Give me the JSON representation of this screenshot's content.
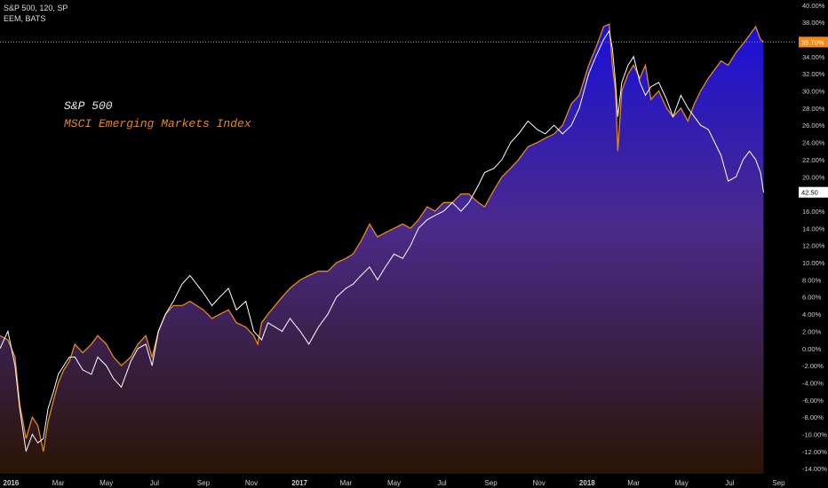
{
  "header": {
    "series1": "S&P 500, 120, SP",
    "series2": "EEM, BATS"
  },
  "legend": {
    "spx": "S&P 500",
    "eem": "MSCI Emerging Markets Index"
  },
  "colors": {
    "background": "#000000",
    "spx_line": "#ffffff",
    "eem_line": "#e08a1e",
    "fill_top": "#1a10d8",
    "fill_bottom": "#2a1404",
    "badge_orange": "#f08a1c",
    "badge_white": "#ffffff"
  },
  "badges": {
    "eem_last": "35.70%",
    "spx_last": "42.50"
  },
  "chart_data": {
    "type": "line",
    "yunit": "percent",
    "ylim": [
      -14.6,
      40.6
    ],
    "xlim": [
      "2015-12-18",
      "2018-09-22"
    ],
    "y_ticks": [
      "40.00%",
      "38.00%",
      "36.00%",
      "34.00%",
      "32.00%",
      "30.00%",
      "28.00%",
      "26.00%",
      "24.00%",
      "22.00%",
      "20.00%",
      "18.00%",
      "16.00%",
      "14.00%",
      "12.00%",
      "10.00%",
      "8.00%",
      "6.00%",
      "4.00%",
      "2.00%",
      "0.00%",
      "-2.00%",
      "-4.00%",
      "-6.00%",
      "-8.00%",
      "-10.00%",
      "-12.00%",
      "-14.00%"
    ],
    "y_tick_values": [
      40,
      38,
      36,
      34,
      32,
      30,
      28,
      26,
      24,
      22,
      20,
      18,
      16,
      14,
      12,
      10,
      8,
      6,
      4,
      2,
      0,
      -2,
      -4,
      -6,
      -8,
      -10,
      -12,
      -14
    ],
    "x_ticks": [
      {
        "label": "2016",
        "date": "2016-01-01",
        "bold": true
      },
      {
        "label": "Mar",
        "date": "2016-03-01"
      },
      {
        "label": "May",
        "date": "2016-05-01"
      },
      {
        "label": "Jul",
        "date": "2016-07-01"
      },
      {
        "label": "Sep",
        "date": "2016-09-01"
      },
      {
        "label": "Nov",
        "date": "2016-11-01"
      },
      {
        "label": "2017",
        "date": "2017-01-01",
        "bold": true
      },
      {
        "label": "Mar",
        "date": "2017-03-01"
      },
      {
        "label": "May",
        "date": "2017-05-01"
      },
      {
        "label": "Jul",
        "date": "2017-07-01"
      },
      {
        "label": "Sep",
        "date": "2017-09-01"
      },
      {
        "label": "Nov",
        "date": "2017-11-01"
      },
      {
        "label": "2018",
        "date": "2018-01-01",
        "bold": true
      },
      {
        "label": "Mar",
        "date": "2018-03-01"
      },
      {
        "label": "May",
        "date": "2018-05-01"
      },
      {
        "label": "Jul",
        "date": "2018-07-01"
      },
      {
        "label": "Sep",
        "date": "2018-09-01"
      }
    ],
    "reference_line": {
      "value": 35.7,
      "label": "35.70%"
    },
    "series": [
      {
        "name": "MSCI Emerging Markets Index",
        "points": [
          [
            "2015-12-18",
            1.5
          ],
          [
            "2015-12-28",
            1.0
          ],
          [
            "2016-01-06",
            -1.0
          ],
          [
            "2016-01-12",
            -6.5
          ],
          [
            "2016-01-20",
            -10.5
          ],
          [
            "2016-01-28",
            -8.0
          ],
          [
            "2016-02-04",
            -9.0
          ],
          [
            "2016-02-11",
            -12.0
          ],
          [
            "2016-02-17",
            -8.5
          ],
          [
            "2016-02-24",
            -6.0
          ],
          [
            "2016-03-01",
            -4.0
          ],
          [
            "2016-03-08",
            -2.5
          ],
          [
            "2016-03-15",
            -1.5
          ],
          [
            "2016-03-22",
            0.5
          ],
          [
            "2016-04-01",
            -0.5
          ],
          [
            "2016-04-12",
            0.5
          ],
          [
            "2016-04-20",
            1.5
          ],
          [
            "2016-05-01",
            0.5
          ],
          [
            "2016-05-10",
            -1.0
          ],
          [
            "2016-05-20",
            -2.0
          ],
          [
            "2016-06-01",
            -1.0
          ],
          [
            "2016-06-10",
            0.5
          ],
          [
            "2016-06-20",
            1.5
          ],
          [
            "2016-06-28",
            -1.0
          ],
          [
            "2016-07-06",
            2.0
          ],
          [
            "2016-07-15",
            4.0
          ],
          [
            "2016-07-25",
            5.0
          ],
          [
            "2016-08-05",
            5.0
          ],
          [
            "2016-08-15",
            5.5
          ],
          [
            "2016-09-01",
            4.5
          ],
          [
            "2016-09-12",
            3.5
          ],
          [
            "2016-09-22",
            4.0
          ],
          [
            "2016-10-03",
            4.5
          ],
          [
            "2016-10-13",
            3.0
          ],
          [
            "2016-10-25",
            2.5
          ],
          [
            "2016-11-04",
            1.5
          ],
          [
            "2016-11-09",
            0.5
          ],
          [
            "2016-11-14",
            3.0
          ],
          [
            "2016-11-22",
            4.0
          ],
          [
            "2016-12-01",
            5.0
          ],
          [
            "2016-12-10",
            6.0
          ],
          [
            "2016-12-20",
            7.0
          ],
          [
            "2017-01-02",
            8.0
          ],
          [
            "2017-01-13",
            8.5
          ],
          [
            "2017-01-25",
            9.0
          ],
          [
            "2017-02-06",
            9.0
          ],
          [
            "2017-02-17",
            10.0
          ],
          [
            "2017-03-01",
            10.5
          ],
          [
            "2017-03-10",
            11.0
          ],
          [
            "2017-03-20",
            12.5
          ],
          [
            "2017-03-31",
            14.5
          ],
          [
            "2017-04-10",
            13.0
          ],
          [
            "2017-04-20",
            13.5
          ],
          [
            "2017-05-01",
            14.0
          ],
          [
            "2017-05-12",
            14.5
          ],
          [
            "2017-05-22",
            14.0
          ],
          [
            "2017-06-01",
            15.0
          ],
          [
            "2017-06-12",
            16.5
          ],
          [
            "2017-06-22",
            16.0
          ],
          [
            "2017-07-03",
            17.0
          ],
          [
            "2017-07-14",
            17.0
          ],
          [
            "2017-07-25",
            18.0
          ],
          [
            "2017-08-04",
            18.0
          ],
          [
            "2017-08-16",
            17.0
          ],
          [
            "2017-08-24",
            16.5
          ],
          [
            "2017-09-05",
            18.5
          ],
          [
            "2017-09-15",
            20.0
          ],
          [
            "2017-09-26",
            21.0
          ],
          [
            "2017-10-06",
            22.0
          ],
          [
            "2017-10-18",
            23.5
          ],
          [
            "2017-10-30",
            24.0
          ],
          [
            "2017-11-09",
            24.5
          ],
          [
            "2017-11-20",
            25.0
          ],
          [
            "2017-12-01",
            26.0
          ],
          [
            "2017-12-12",
            28.5
          ],
          [
            "2017-12-22",
            29.5
          ],
          [
            "2018-01-03",
            33.0
          ],
          [
            "2018-01-12",
            35.0
          ],
          [
            "2018-01-22",
            37.5
          ],
          [
            "2018-01-29",
            37.8
          ],
          [
            "2018-02-02",
            33.0
          ],
          [
            "2018-02-06",
            30.0
          ],
          [
            "2018-02-09",
            23.0
          ],
          [
            "2018-02-14",
            30.0
          ],
          [
            "2018-02-22",
            32.0
          ],
          [
            "2018-03-01",
            33.0
          ],
          [
            "2018-03-09",
            31.5
          ],
          [
            "2018-03-16",
            33.0
          ],
          [
            "2018-03-23",
            29.0
          ],
          [
            "2018-04-02",
            30.0
          ],
          [
            "2018-04-12",
            28.0
          ],
          [
            "2018-04-20",
            27.0
          ],
          [
            "2018-04-30",
            28.0
          ],
          [
            "2018-05-09",
            26.5
          ],
          [
            "2018-05-17",
            28.5
          ],
          [
            "2018-05-25",
            30.0
          ],
          [
            "2018-06-04",
            31.5
          ],
          [
            "2018-06-12",
            32.5
          ],
          [
            "2018-06-20",
            33.5
          ],
          [
            "2018-06-29",
            33.0
          ],
          [
            "2018-07-09",
            34.5
          ],
          [
            "2018-07-18",
            35.5
          ],
          [
            "2018-07-26",
            36.5
          ],
          [
            "2018-08-03",
            37.5
          ],
          [
            "2018-08-09",
            36.0
          ],
          [
            "2018-08-13",
            35.7
          ]
        ]
      },
      {
        "name": "S&P 500",
        "points": [
          [
            "2015-12-18",
            0.0
          ],
          [
            "2015-12-28",
            2.0
          ],
          [
            "2016-01-06",
            -2.0
          ],
          [
            "2016-01-12",
            -7.0
          ],
          [
            "2016-01-20",
            -12.0
          ],
          [
            "2016-01-28",
            -10.0
          ],
          [
            "2016-02-04",
            -11.0
          ],
          [
            "2016-02-11",
            -10.5
          ],
          [
            "2016-02-17",
            -7.0
          ],
          [
            "2016-02-24",
            -5.0
          ],
          [
            "2016-03-01",
            -3.0
          ],
          [
            "2016-03-08",
            -2.0
          ],
          [
            "2016-03-15",
            -1.0
          ],
          [
            "2016-03-22",
            -1.0
          ],
          [
            "2016-04-01",
            -2.5
          ],
          [
            "2016-04-12",
            -3.0
          ],
          [
            "2016-04-20",
            -1.0
          ],
          [
            "2016-05-01",
            -2.0
          ],
          [
            "2016-05-10",
            -3.5
          ],
          [
            "2016-05-20",
            -4.5
          ],
          [
            "2016-06-01",
            -1.5
          ],
          [
            "2016-06-10",
            0.0
          ],
          [
            "2016-06-20",
            0.5
          ],
          [
            "2016-06-28",
            -2.0
          ],
          [
            "2016-07-06",
            2.0
          ],
          [
            "2016-07-15",
            4.0
          ],
          [
            "2016-07-25",
            5.5
          ],
          [
            "2016-08-05",
            7.5
          ],
          [
            "2016-08-15",
            8.5
          ],
          [
            "2016-09-01",
            6.5
          ],
          [
            "2016-09-12",
            5.0
          ],
          [
            "2016-09-22",
            6.0
          ],
          [
            "2016-10-03",
            7.0
          ],
          [
            "2016-10-13",
            4.5
          ],
          [
            "2016-10-25",
            5.5
          ],
          [
            "2016-11-04",
            2.0
          ],
          [
            "2016-11-09",
            1.5
          ],
          [
            "2016-11-14",
            1.0
          ],
          [
            "2016-11-22",
            3.0
          ],
          [
            "2016-12-01",
            2.5
          ],
          [
            "2016-12-10",
            2.0
          ],
          [
            "2016-12-20",
            3.5
          ],
          [
            "2017-01-02",
            2.0
          ],
          [
            "2017-01-13",
            0.5
          ],
          [
            "2017-01-25",
            2.5
          ],
          [
            "2017-02-06",
            4.0
          ],
          [
            "2017-02-17",
            6.0
          ],
          [
            "2017-03-01",
            7.0
          ],
          [
            "2017-03-10",
            7.5
          ],
          [
            "2017-03-20",
            8.5
          ],
          [
            "2017-03-31",
            9.5
          ],
          [
            "2017-04-10",
            8.0
          ],
          [
            "2017-04-20",
            9.5
          ],
          [
            "2017-05-01",
            11.0
          ],
          [
            "2017-05-12",
            10.5
          ],
          [
            "2017-05-22",
            12.0
          ],
          [
            "2017-06-01",
            14.0
          ],
          [
            "2017-06-12",
            15.0
          ],
          [
            "2017-06-22",
            15.5
          ],
          [
            "2017-07-03",
            16.0
          ],
          [
            "2017-07-14",
            17.0
          ],
          [
            "2017-07-25",
            16.0
          ],
          [
            "2017-08-04",
            17.0
          ],
          [
            "2017-08-16",
            19.0
          ],
          [
            "2017-08-24",
            20.5
          ],
          [
            "2017-09-05",
            21.0
          ],
          [
            "2017-09-15",
            22.0
          ],
          [
            "2017-09-26",
            24.0
          ],
          [
            "2017-10-06",
            25.0
          ],
          [
            "2017-10-18",
            26.5
          ],
          [
            "2017-10-30",
            25.5
          ],
          [
            "2017-11-09",
            25.0
          ],
          [
            "2017-11-20",
            26.0
          ],
          [
            "2017-12-01",
            25.0
          ],
          [
            "2017-12-12",
            26.0
          ],
          [
            "2017-12-22",
            28.0
          ],
          [
            "2018-01-03",
            32.0
          ],
          [
            "2018-01-12",
            34.0
          ],
          [
            "2018-01-22",
            36.0
          ],
          [
            "2018-01-29",
            37.0
          ],
          [
            "2018-02-02",
            35.0
          ],
          [
            "2018-02-06",
            31.0
          ],
          [
            "2018-02-09",
            27.0
          ],
          [
            "2018-02-14",
            31.0
          ],
          [
            "2018-02-22",
            33.0
          ],
          [
            "2018-03-01",
            34.0
          ],
          [
            "2018-03-09",
            31.0
          ],
          [
            "2018-03-16",
            29.5
          ],
          [
            "2018-03-23",
            30.5
          ],
          [
            "2018-04-02",
            31.0
          ],
          [
            "2018-04-12",
            29.0
          ],
          [
            "2018-04-20",
            27.0
          ],
          [
            "2018-04-30",
            29.5
          ],
          [
            "2018-05-09",
            28.0
          ],
          [
            "2018-05-17",
            27.0
          ],
          [
            "2018-05-25",
            26.0
          ],
          [
            "2018-06-04",
            25.5
          ],
          [
            "2018-06-12",
            24.0
          ],
          [
            "2018-06-20",
            22.5
          ],
          [
            "2018-06-29",
            19.5
          ],
          [
            "2018-07-09",
            20.0
          ],
          [
            "2018-07-18",
            22.0
          ],
          [
            "2018-07-26",
            23.0
          ],
          [
            "2018-08-03",
            22.0
          ],
          [
            "2018-08-09",
            20.5
          ],
          [
            "2018-08-13",
            18.2
          ]
        ]
      }
    ]
  }
}
